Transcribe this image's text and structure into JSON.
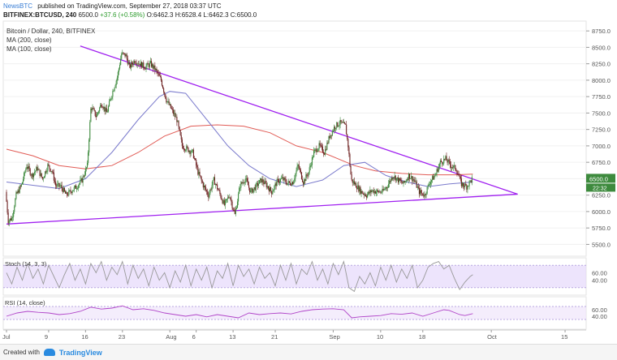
{
  "header": {
    "brand": "NewsBTC",
    "published": "published on TradingView.com, September 27, 2018 03:37 UTC",
    "symbol_line": "BITFINEX:BTCUSD, 240",
    "last": "6500.0",
    "change": "+37.6 (+0.58%)",
    "ohlc": "O:6462.3 H:6528.4 L:6462.3 C:6500.0"
  },
  "legend": {
    "title": "Bitcoin / Dollar, 240, BITFINEX",
    "ma200": "MA (200, close)",
    "ma100": "MA (100, close)"
  },
  "footer": {
    "created_with": "Created with",
    "brand": "TradingView"
  },
  "colors": {
    "up": "#3d8a3d",
    "down": "#6d1f1f",
    "trendline": "#a020f0",
    "ma200": "#e15b55",
    "ma100": "#7a7acc",
    "stoch_band": "#e6d9fb",
    "stoch_line": "#999999",
    "rsi_line": "#b044c8",
    "price_label_bg": "#3d8a3d"
  },
  "chart_data": {
    "type": "candlestick",
    "title": "Bitcoin / Dollar, 240, BITFINEX",
    "y_ticks": [
      8750,
      8500,
      8250,
      8000,
      7750,
      7500,
      7250,
      7000,
      6750,
      6500,
      6250,
      6000,
      5750,
      5500
    ],
    "ylim": [
      5320,
      8900
    ],
    "x_labels": [
      "Jul",
      "9",
      "16",
      "23",
      "Aug",
      "6",
      "13",
      "21",
      "Sep",
      "10",
      "18",
      "Oct",
      "15"
    ],
    "x_label_days": [
      0,
      8,
      15,
      22,
      31,
      36,
      43,
      51,
      62,
      71,
      79,
      92,
      106
    ],
    "current_price_label": "6500.0",
    "countdown_label": "22:32",
    "price_path": [
      [
        0,
        6300
      ],
      [
        0.5,
        5860
      ],
      [
        1.2,
        5900
      ],
      [
        2,
        6250
      ],
      [
        3,
        6400
      ],
      [
        4,
        6700
      ],
      [
        5,
        6550
      ],
      [
        6,
        6660
      ],
      [
        7,
        6500
      ],
      [
        8,
        6700
      ],
      [
        8.8,
        6620
      ],
      [
        9.5,
        6400
      ],
      [
        10.5,
        6380
      ],
      [
        11.5,
        6250
      ],
      [
        12.5,
        6320
      ],
      [
        13.5,
        6380
      ],
      [
        14.5,
        6480
      ],
      [
        15.5,
        6700
      ],
      [
        16.2,
        7600
      ],
      [
        17.2,
        7450
      ],
      [
        18.2,
        7650
      ],
      [
        19.2,
        7500
      ],
      [
        20.2,
        7800
      ],
      [
        21.2,
        8050
      ],
      [
        22,
        8400
      ],
      [
        22.8,
        8380
      ],
      [
        23.5,
        8200
      ],
      [
        24.5,
        8300
      ],
      [
        25.5,
        8250
      ],
      [
        26.5,
        8200
      ],
      [
        27.5,
        8250
      ],
      [
        28.5,
        8150
      ],
      [
        29.5,
        8000
      ],
      [
        30.5,
        7700
      ],
      [
        31.5,
        7550
      ],
      [
        32.5,
        7400
      ],
      [
        33.5,
        7000
      ],
      [
        34.5,
        6950
      ],
      [
        35.5,
        6900
      ],
      [
        36.5,
        6600
      ],
      [
        37.5,
        6400
      ],
      [
        38.5,
        6250
      ],
      [
        39.5,
        6480
      ],
      [
        40.5,
        6300
      ],
      [
        41.5,
        6100
      ],
      [
        42.5,
        6250
      ],
      [
        43.5,
        5950
      ],
      [
        44.5,
        6400
      ],
      [
        45.5,
        6500
      ],
      [
        46.5,
        6300
      ],
      [
        47.5,
        6380
      ],
      [
        48.5,
        6480
      ],
      [
        49.5,
        6400
      ],
      [
        50.5,
        6300
      ],
      [
        51.5,
        6450
      ],
      [
        52.5,
        6500
      ],
      [
        53.5,
        6430
      ],
      [
        54.5,
        6450
      ],
      [
        55.5,
        6700
      ],
      [
        56.5,
        6450
      ],
      [
        57.5,
        6600
      ],
      [
        58.5,
        6900
      ],
      [
        59.5,
        7000
      ],
      [
        60.5,
        6900
      ],
      [
        61.5,
        7150
      ],
      [
        62.5,
        7300
      ],
      [
        63.5,
        7350
      ],
      [
        64.5,
        7300
      ],
      [
        65,
        7000
      ],
      [
        65.6,
        6480
      ],
      [
        66.5,
        6400
      ],
      [
        67.5,
        6300
      ],
      [
        68.5,
        6250
      ],
      [
        69.5,
        6320
      ],
      [
        70.5,
        6300
      ],
      [
        71.5,
        6300
      ],
      [
        72.5,
        6400
      ],
      [
        73.5,
        6550
      ],
      [
        74.5,
        6480
      ],
      [
        75.5,
        6420
      ],
      [
        76.5,
        6550
      ],
      [
        77.5,
        6480
      ],
      [
        78.5,
        6300
      ],
      [
        79.5,
        6250
      ],
      [
        80.5,
        6450
      ],
      [
        81.5,
        6550
      ],
      [
        82.5,
        6750
      ],
      [
        83.5,
        6800
      ],
      [
        84.5,
        6700
      ],
      [
        85.5,
        6650
      ],
      [
        86.5,
        6420
      ],
      [
        87.5,
        6380
      ],
      [
        88.5,
        6500
      ]
    ],
    "ma200_path": [
      [
        0,
        6950
      ],
      [
        5,
        6850
      ],
      [
        10,
        6700
      ],
      [
        15,
        6650
      ],
      [
        20,
        6700
      ],
      [
        25,
        6900
      ],
      [
        30,
        7150
      ],
      [
        35,
        7300
      ],
      [
        40,
        7320
      ],
      [
        45,
        7300
      ],
      [
        50,
        7200
      ],
      [
        55,
        7000
      ],
      [
        60,
        6900
      ],
      [
        63,
        6800
      ],
      [
        66,
        6700
      ],
      [
        70,
        6620
      ],
      [
        75,
        6580
      ],
      [
        80,
        6560
      ],
      [
        85,
        6560
      ],
      [
        88.5,
        6570
      ]
    ],
    "ma100_path": [
      [
        0,
        6450
      ],
      [
        5,
        6400
      ],
      [
        10,
        6350
      ],
      [
        15,
        6500
      ],
      [
        20,
        6900
      ],
      [
        25,
        7400
      ],
      [
        29,
        7750
      ],
      [
        31,
        7830
      ],
      [
        34,
        7800
      ],
      [
        38,
        7400
      ],
      [
        42,
        7000
      ],
      [
        46,
        6700
      ],
      [
        50,
        6500
      ],
      [
        55,
        6380
      ],
      [
        60,
        6480
      ],
      [
        64,
        6700
      ],
      [
        68,
        6750
      ],
      [
        72,
        6550
      ],
      [
        76,
        6450
      ],
      [
        80,
        6380
      ],
      [
        84,
        6420
      ],
      [
        88.5,
        6450
      ]
    ],
    "trendlines": [
      {
        "from": [
          14,
          8520
        ],
        "to": [
          97,
          6265
        ]
      },
      {
        "from": [
          0,
          5810
        ],
        "to": [
          97,
          6265
        ]
      }
    ],
    "stoch": {
      "label": "Stoch (14, 3, 3)",
      "y_ticks": [
        60,
        40
      ],
      "band": [
        20,
        80
      ],
      "path": [
        [
          0,
          60
        ],
        [
          1,
          30
        ],
        [
          2,
          75
        ],
        [
          3,
          40
        ],
        [
          4,
          85
        ],
        [
          5,
          45
        ],
        [
          6,
          70
        ],
        [
          7,
          30
        ],
        [
          8,
          80
        ],
        [
          9,
          50
        ],
        [
          10,
          20
        ],
        [
          11,
          55
        ],
        [
          12,
          85
        ],
        [
          13,
          40
        ],
        [
          14,
          70
        ],
        [
          15,
          30
        ],
        [
          16,
          85
        ],
        [
          17,
          60
        ],
        [
          18,
          90
        ],
        [
          19,
          40
        ],
        [
          20,
          75
        ],
        [
          21,
          55
        ],
        [
          22,
          90
        ],
        [
          23,
          30
        ],
        [
          24,
          80
        ],
        [
          25,
          45
        ],
        [
          26,
          70
        ],
        [
          27,
          25
        ],
        [
          28,
          75
        ],
        [
          29,
          40
        ],
        [
          30,
          60
        ],
        [
          31,
          20
        ],
        [
          32,
          65
        ],
        [
          33,
          35
        ],
        [
          34,
          80
        ],
        [
          35,
          25
        ],
        [
          36,
          70
        ],
        [
          37,
          40
        ],
        [
          38,
          75
        ],
        [
          39,
          20
        ],
        [
          40,
          65
        ],
        [
          41,
          45
        ],
        [
          42,
          85
        ],
        [
          43,
          25
        ],
        [
          44,
          80
        ],
        [
          45,
          50
        ],
        [
          46,
          70
        ],
        [
          47,
          30
        ],
        [
          48,
          75
        ],
        [
          49,
          45
        ],
        [
          50,
          60
        ],
        [
          51,
          25
        ],
        [
          52,
          80
        ],
        [
          53,
          40
        ],
        [
          54,
          85
        ],
        [
          55,
          30
        ],
        [
          56,
          70
        ],
        [
          57,
          55
        ],
        [
          58,
          90
        ],
        [
          59,
          40
        ],
        [
          60,
          70
        ],
        [
          61,
          30
        ],
        [
          62,
          85
        ],
        [
          63,
          55
        ],
        [
          64,
          90
        ],
        [
          65,
          20
        ],
        [
          66,
          10
        ],
        [
          67,
          50
        ],
        [
          68,
          30
        ],
        [
          69,
          60
        ],
        [
          70,
          25
        ],
        [
          71,
          75
        ],
        [
          72,
          40
        ],
        [
          73,
          80
        ],
        [
          74,
          35
        ],
        [
          75,
          70
        ],
        [
          76,
          45
        ],
        [
          77,
          80
        ],
        [
          78,
          20
        ],
        [
          79,
          40
        ],
        [
          80,
          75
        ],
        [
          81,
          85
        ],
        [
          82,
          90
        ],
        [
          83,
          70
        ],
        [
          84,
          80
        ],
        [
          85,
          45
        ],
        [
          86,
          15
        ],
        [
          87,
          35
        ],
        [
          88,
          50
        ],
        [
          88.5,
          55
        ]
      ]
    },
    "rsi": {
      "label": "RSI (14, close)",
      "y_ticks": [
        60,
        40
      ],
      "band": [
        30,
        70
      ],
      "path": [
        [
          0,
          40
        ],
        [
          2,
          50
        ],
        [
          4,
          55
        ],
        [
          6,
          52
        ],
        [
          8,
          50
        ],
        [
          10,
          45
        ],
        [
          12,
          48
        ],
        [
          14,
          55
        ],
        [
          16,
          68
        ],
        [
          18,
          62
        ],
        [
          20,
          65
        ],
        [
          22,
          72
        ],
        [
          24,
          60
        ],
        [
          26,
          63
        ],
        [
          28,
          58
        ],
        [
          30,
          50
        ],
        [
          32,
          45
        ],
        [
          34,
          40
        ],
        [
          36,
          45
        ],
        [
          38,
          38
        ],
        [
          40,
          45
        ],
        [
          42,
          40
        ],
        [
          44,
          35
        ],
        [
          46,
          50
        ],
        [
          48,
          45
        ],
        [
          50,
          48
        ],
        [
          52,
          50
        ],
        [
          54,
          47
        ],
        [
          56,
          55
        ],
        [
          58,
          60
        ],
        [
          60,
          62
        ],
        [
          62,
          63
        ],
        [
          64,
          60
        ],
        [
          65.5,
          35
        ],
        [
          67,
          38
        ],
        [
          69,
          40
        ],
        [
          71,
          42
        ],
        [
          73,
          48
        ],
        [
          75,
          46
        ],
        [
          77,
          50
        ],
        [
          79,
          40
        ],
        [
          81,
          50
        ],
        [
          83,
          60
        ],
        [
          84,
          58
        ],
        [
          86,
          45
        ],
        [
          87,
          42
        ],
        [
          88.5,
          48
        ]
      ]
    }
  }
}
